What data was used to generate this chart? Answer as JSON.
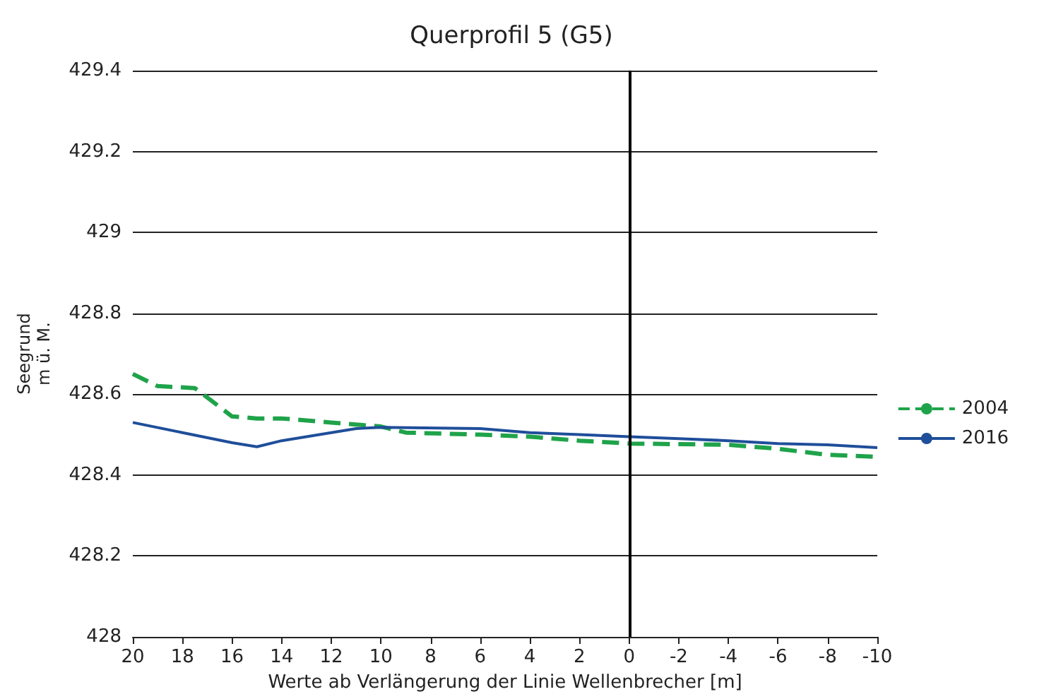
{
  "chart_data": {
    "type": "line",
    "title": "Querprofil 5 (G5)",
    "xlabel": "Werte ab Verlängerung der Linie Wellenbrecher [m]",
    "ylabel": "Seegrund\nm ü. M.",
    "xlim": [
      20,
      -10
    ],
    "xticks": [
      20,
      18,
      16,
      14,
      12,
      10,
      8,
      6,
      4,
      2,
      0,
      -2,
      -4,
      -6,
      -8,
      -10
    ],
    "ylim": [
      428,
      429.4
    ],
    "yticks": [
      428,
      428.2,
      428.4,
      428.6,
      428.8,
      429,
      429.2,
      429.4
    ],
    "grid": "y",
    "legend": "right",
    "marker": "none",
    "ref_lines": [
      {
        "axis": "x",
        "value": 0,
        "color": "#000000"
      }
    ],
    "series": [
      {
        "name": "2004",
        "color": "#1fa34a",
        "line_style": "dashed",
        "x": [
          20,
          19,
          17.5,
          16,
          15,
          14,
          12,
          10,
          9,
          6,
          4,
          2,
          0,
          -4,
          -6,
          -8,
          -10
        ],
        "values": [
          428.65,
          428.62,
          428.615,
          428.545,
          428.54,
          428.54,
          428.53,
          428.52,
          428.505,
          428.5,
          428.495,
          428.485,
          428.478,
          428.475,
          428.465,
          428.45,
          428.445
        ]
      },
      {
        "name": "2016",
        "color": "#1f4e9a",
        "line_style": "solid",
        "x": [
          20,
          18,
          16,
          15,
          14,
          12,
          11,
          10,
          6,
          4,
          2,
          0,
          -2,
          -4,
          -6,
          -8,
          -10
        ],
        "values": [
          428.53,
          428.505,
          428.48,
          428.47,
          428.485,
          428.505,
          428.515,
          428.518,
          428.515,
          428.505,
          428.5,
          428.495,
          428.49,
          428.485,
          428.478,
          428.475,
          428.468
        ]
      }
    ]
  }
}
